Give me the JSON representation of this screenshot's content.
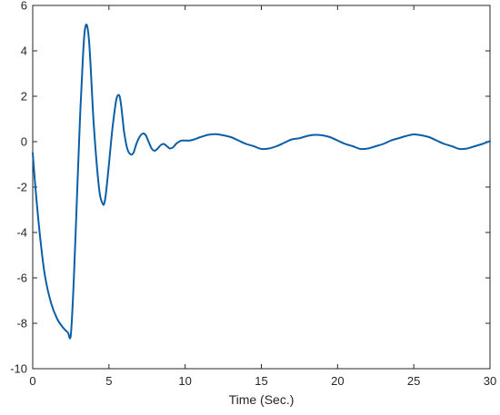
{
  "chart_data": {
    "type": "line",
    "title": "",
    "xlabel": "Time (Sec.)",
    "ylabel": "",
    "xlim": [
      0,
      30
    ],
    "ylim": [
      -10,
      6
    ],
    "xticks": [
      0,
      5,
      10,
      15,
      20,
      25,
      30
    ],
    "yticks": [
      -10,
      -8,
      -6,
      -4,
      -2,
      0,
      2,
      4,
      6
    ],
    "xtick_labels": [
      "0",
      "5",
      "10",
      "15",
      "20",
      "25",
      "30"
    ],
    "ytick_labels": [
      "-10",
      "-8",
      "-6",
      "-4",
      "-2",
      "0",
      "2",
      "4",
      "6"
    ],
    "grid": false,
    "line_color": "#0a5fa8",
    "series": [
      {
        "x": [
          0,
          0.2,
          0.5,
          0.8,
          1.2,
          1.6,
          2.0,
          2.3,
          2.5,
          2.7,
          2.9,
          3.1,
          3.3,
          3.4,
          3.5,
          3.6,
          3.7,
          3.8,
          3.9,
          4.0,
          4.2,
          4.4,
          4.6,
          4.7,
          4.8,
          5.0,
          5.2,
          5.4,
          5.5,
          5.6,
          5.7,
          5.8,
          5.9,
          6.0,
          6.2,
          6.4,
          6.6,
          6.8,
          7.0,
          7.2,
          7.4,
          7.6,
          7.8,
          8.0,
          8.2,
          8.4,
          8.6,
          8.8,
          9.0,
          9.2,
          9.4,
          9.6,
          9.8,
          10.0,
          10.3,
          10.6,
          11.0,
          11.5,
          12.0,
          12.5,
          13.0,
          13.5,
          14.0,
          14.5,
          15.0,
          15.5,
          16.0,
          16.5,
          17.0,
          17.5,
          18.0,
          18.5,
          19.0,
          19.5,
          20.0,
          20.5,
          21.0,
          21.5,
          22.0,
          22.5,
          23.0,
          23.5,
          24.0,
          24.5,
          25.0,
          25.5,
          26.0,
          26.5,
          27.0,
          27.5,
          28.0,
          28.5,
          29.0,
          29.5,
          30.0
        ],
        "values": [
          -0.5,
          -2.2,
          -4.3,
          -5.9,
          -7.1,
          -7.8,
          -8.2,
          -8.4,
          -8.5,
          -6.0,
          -2.5,
          1.0,
          3.8,
          4.8,
          5.15,
          5.0,
          4.4,
          3.3,
          2.0,
          0.8,
          -1.0,
          -2.3,
          -2.75,
          -2.7,
          -2.3,
          -1.0,
          0.4,
          1.5,
          1.9,
          2.05,
          2.0,
          1.6,
          1.0,
          0.4,
          -0.3,
          -0.55,
          -0.5,
          -0.1,
          0.2,
          0.35,
          0.3,
          0.0,
          -0.3,
          -0.4,
          -0.3,
          -0.15,
          -0.1,
          -0.2,
          -0.3,
          -0.25,
          -0.1,
          0.0,
          0.05,
          0.05,
          0.05,
          0.1,
          0.2,
          0.3,
          0.33,
          0.28,
          0.2,
          0.05,
          -0.1,
          -0.2,
          -0.32,
          -0.3,
          -0.2,
          -0.05,
          0.1,
          0.15,
          0.25,
          0.3,
          0.28,
          0.2,
          0.05,
          -0.1,
          -0.2,
          -0.32,
          -0.3,
          -0.2,
          -0.1,
          0.05,
          0.15,
          0.25,
          0.32,
          0.28,
          0.2,
          0.05,
          -0.1,
          -0.2,
          -0.32,
          -0.3,
          -0.2,
          -0.1,
          0.02
        ]
      }
    ]
  }
}
